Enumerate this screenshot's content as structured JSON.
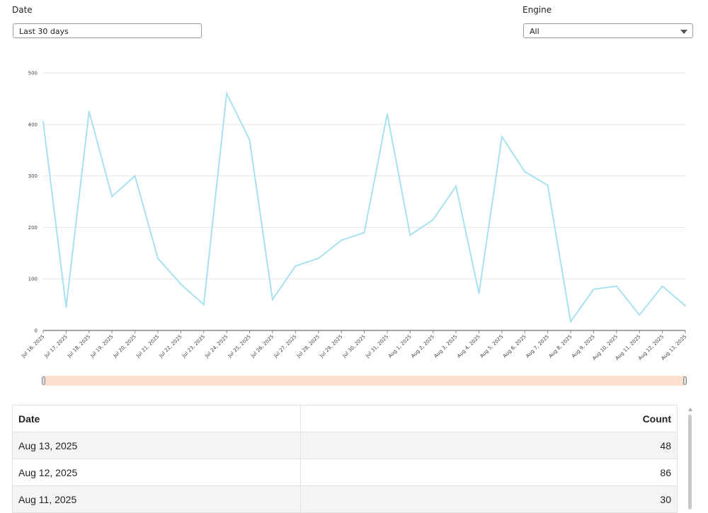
{
  "filters": {
    "date": {
      "label": "Date",
      "value": "Last 30 days"
    },
    "engine": {
      "label": "Engine",
      "value": "All"
    }
  },
  "colors": {
    "line": "#a8e1f0",
    "range_fill": "#fbe0cf",
    "grid": "#e6e6e6",
    "axis": "#888888"
  },
  "chart_data": {
    "type": "line",
    "title": "",
    "xlabel": "",
    "ylabel": "",
    "ylim": [
      0,
      500
    ],
    "yticks": [
      0,
      100,
      200,
      300,
      400,
      500
    ],
    "grid": true,
    "x": [
      "Jul 16, 2025",
      "Jul 17, 2025",
      "Jul 18, 2025",
      "Jul 19, 2025",
      "Jul 20, 2025",
      "Jul 21, 2025",
      "Jul 22, 2025",
      "Jul 23, 2025",
      "Jul 24, 2025",
      "Jul 25, 2025",
      "Jul 26, 2025",
      "Jul 27, 2025",
      "Jul 28, 2025",
      "Jul 29, 2025",
      "Jul 30, 2025",
      "Jul 31, 2025",
      "Aug 1, 2025",
      "Aug 2, 2025",
      "Aug 3, 2025",
      "Aug 4, 2025",
      "Aug 5, 2025",
      "Aug 6, 2025",
      "Aug 7, 2025",
      "Aug 8, 2025",
      "Aug 9, 2025",
      "Aug 10, 2025",
      "Aug 11, 2025",
      "Aug 12, 2025",
      "Aug 13, 2025"
    ],
    "values": [
      405,
      45,
      425,
      260,
      300,
      140,
      90,
      50,
      460,
      370,
      60,
      125,
      140,
      175,
      190,
      420,
      185,
      215,
      280,
      72,
      376,
      308,
      282,
      17,
      80,
      86,
      30,
      86,
      48
    ]
  },
  "table": {
    "headers": [
      "Date",
      "Count"
    ],
    "rows": [
      [
        "Aug 13, 2025",
        "48"
      ],
      [
        "Aug 12, 2025",
        "86"
      ],
      [
        "Aug 11, 2025",
        "30"
      ]
    ]
  }
}
